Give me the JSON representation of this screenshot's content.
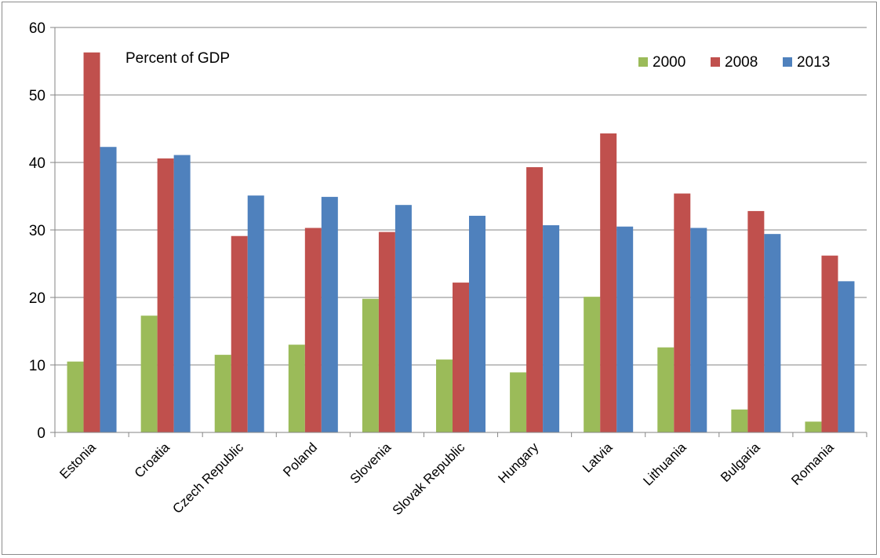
{
  "chart_data": {
    "type": "bar",
    "title": "",
    "xlabel": "",
    "ylabel": "",
    "annotation": "Percent of GDP",
    "ylim": [
      0,
      60
    ],
    "yticks": [
      0,
      10,
      20,
      30,
      40,
      50,
      60
    ],
    "grid": true,
    "legend_position": "top-right",
    "categories": [
      "Estonia",
      "Croatia",
      "Czech Republic",
      "Poland",
      "Slovenia",
      "Slovak Republic",
      "Hungary",
      "Latvia",
      "Lithuania",
      "Bulgaria",
      "Romania"
    ],
    "series": [
      {
        "name": "2000",
        "color": "#9bbb59",
        "values": [
          10.5,
          17.3,
          11.5,
          13.0,
          19.8,
          10.8,
          8.9,
          20.1,
          12.6,
          3.4,
          1.6
        ]
      },
      {
        "name": "2008",
        "color": "#c0504d",
        "values": [
          56.3,
          40.6,
          29.1,
          30.3,
          29.7,
          22.2,
          39.3,
          44.3,
          35.4,
          32.8,
          26.2
        ]
      },
      {
        "name": "2013",
        "color": "#4f81bd",
        "values": [
          42.3,
          41.1,
          35.1,
          34.9,
          33.7,
          32.1,
          30.7,
          30.5,
          30.3,
          29.4,
          22.4
        ]
      }
    ]
  }
}
